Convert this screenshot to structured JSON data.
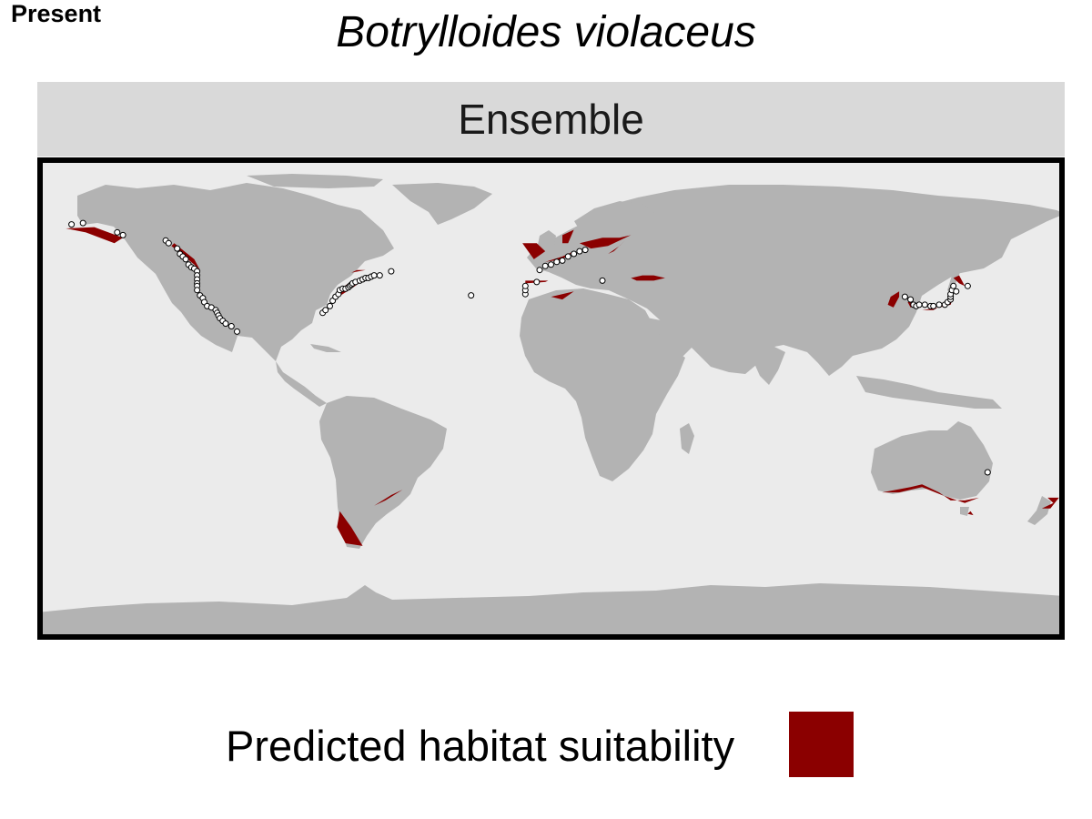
{
  "panel_tag": "Present",
  "title": "Botrylloides violaceus",
  "facet_label": "Ensemble",
  "legend": {
    "label": "Predicted habitat suitability",
    "color": "#8b0000"
  },
  "colors": {
    "ocean": "#ebebeb",
    "land": "#b3b3b3",
    "strip": "#d9d9d9",
    "frame": "#000000",
    "suitable": "#8b0000",
    "occurrence_fill": "#ffffff",
    "occurrence_stroke": "#000000"
  },
  "chart_data": {
    "type": "map",
    "projection": "equirectangular",
    "xlim": [
      -180,
      180
    ],
    "ylim": [
      -90,
      90
    ],
    "occurrences": [
      [
        -168,
        65
      ],
      [
        -164,
        65.5
      ],
      [
        -152,
        62
      ],
      [
        -150,
        61
      ],
      [
        -135,
        59
      ],
      [
        -134,
        58
      ],
      [
        -131,
        56
      ],
      [
        -130,
        54
      ],
      [
        -129,
        53
      ],
      [
        -128,
        52
      ],
      [
        -127,
        50
      ],
      [
        -126,
        49
      ],
      [
        -125,
        48.5
      ],
      [
        -124,
        47.5
      ],
      [
        -124,
        46
      ],
      [
        -124,
        44.5
      ],
      [
        -124,
        43
      ],
      [
        -124,
        42
      ],
      [
        -124,
        40.5
      ],
      [
        -123,
        38.5
      ],
      [
        -122,
        37.5
      ],
      [
        -121.5,
        36
      ],
      [
        -120.5,
        34.5
      ],
      [
        -119,
        34
      ],
      [
        -117.5,
        33
      ],
      [
        -117,
        32
      ],
      [
        -116.5,
        31
      ],
      [
        -116,
        30
      ],
      [
        -115,
        29
      ],
      [
        -114,
        28
      ],
      [
        -112,
        27
      ],
      [
        -110,
        25
      ],
      [
        -80,
        32
      ],
      [
        -79,
        33
      ],
      [
        -77.5,
        34.5
      ],
      [
        -76.5,
        36.5
      ],
      [
        -75.5,
        38
      ],
      [
        -74.5,
        39
      ],
      [
        -74,
        40.5
      ],
      [
        -73,
        41
      ],
      [
        -72,
        41
      ],
      [
        -71,
        41.5
      ],
      [
        -70.5,
        42
      ],
      [
        -70,
        42.5
      ],
      [
        -69.5,
        43
      ],
      [
        -68.5,
        43.5
      ],
      [
        -67,
        44
      ],
      [
        -66,
        44.5
      ],
      [
        -65,
        45
      ],
      [
        -64,
        45
      ],
      [
        -63,
        45.5
      ],
      [
        -62,
        46
      ],
      [
        -60,
        46
      ],
      [
        -56,
        47.5
      ],
      [
        -28,
        38.5
      ],
      [
        -9,
        39
      ],
      [
        -9,
        40.5
      ],
      [
        -9,
        42
      ],
      [
        -5,
        43.5
      ],
      [
        -4,
        48
      ],
      [
        -2,
        49.5
      ],
      [
        0,
        50
      ],
      [
        2,
        51
      ],
      [
        4,
        51.5
      ],
      [
        6,
        53
      ],
      [
        8,
        54
      ],
      [
        10,
        55
      ],
      [
        12,
        55.5
      ],
      [
        18,
        44
      ],
      [
        124,
        38
      ],
      [
        126,
        37
      ],
      [
        127,
        35
      ],
      [
        128,
        34.5
      ],
      [
        129,
        35
      ],
      [
        131,
        35
      ],
      [
        133,
        34.5
      ],
      [
        134,
        34.5
      ],
      [
        136,
        35
      ],
      [
        138,
        35
      ],
      [
        139,
        36
      ],
      [
        140,
        37
      ],
      [
        140,
        38
      ],
      [
        140,
        39
      ],
      [
        140.5,
        40.5
      ],
      [
        142,
        40
      ],
      [
        141,
        42
      ],
      [
        146,
        42
      ],
      [
        153,
        -27.5
      ]
    ],
    "suitable_regions": [
      [
        [
          -170,
          63.5
        ],
        [
          -163,
          62
        ],
        [
          -153,
          58
        ],
        [
          -150,
          60
        ],
        [
          -160,
          64
        ]
      ],
      [
        [
          -133,
          57
        ],
        [
          -125,
          50
        ],
        [
          -123,
          48
        ],
        [
          -125,
          52
        ],
        [
          -132,
          58
        ]
      ],
      [
        [
          -76,
          37
        ],
        [
          -70,
          41
        ],
        [
          -66,
          44
        ],
        [
          -71,
          43
        ],
        [
          -75,
          40
        ]
      ],
      [
        [
          -78,
          34
        ],
        [
          -74,
          38
        ],
        [
          -76,
          36
        ]
      ],
      [
        [
          -62,
          -40
        ],
        [
          -58,
          -38
        ],
        [
          -52,
          -34
        ],
        [
          -56,
          -36
        ]
      ],
      [
        [
          -74,
          -42
        ],
        [
          -70,
          -48
        ],
        [
          -66,
          -55
        ],
        [
          -72,
          -54
        ],
        [
          -75,
          -48
        ]
      ],
      [
        [
          -10,
          58
        ],
        [
          -5,
          58
        ],
        [
          -2,
          55
        ],
        [
          -6,
          52
        ],
        [
          -8,
          55
        ]
      ],
      [
        [
          -2,
          51
        ],
        [
          4,
          52
        ],
        [
          8,
          55
        ],
        [
          4,
          53
        ]
      ],
      [
        [
          4,
          61
        ],
        [
          8,
          63
        ],
        [
          6,
          58
        ],
        [
          4,
          58
        ]
      ],
      [
        [
          10,
          58
        ],
        [
          18,
          60
        ],
        [
          24,
          60
        ],
        [
          28,
          61
        ],
        [
          20,
          57
        ],
        [
          14,
          56
        ]
      ],
      [
        [
          20,
          54
        ],
        [
          24,
          57
        ],
        [
          26,
          59
        ],
        [
          22,
          55
        ]
      ],
      [
        [
          -9,
          43
        ],
        [
          -2,
          43.5
        ],
        [
          -1,
          44
        ],
        [
          -9,
          44
        ]
      ],
      [
        [
          28,
          45
        ],
        [
          32,
          46
        ],
        [
          36,
          46
        ],
        [
          40,
          45
        ],
        [
          36,
          44
        ],
        [
          30,
          44
        ]
      ],
      [
        [
          0,
          38
        ],
        [
          8,
          40
        ],
        [
          4,
          37
        ]
      ],
      [
        [
          120,
          34
        ],
        [
          122,
          38
        ],
        [
          122,
          40
        ],
        [
          119,
          38
        ],
        [
          118,
          35
        ]
      ],
      [
        [
          126,
          34
        ],
        [
          128,
          35
        ],
        [
          127,
          36
        ],
        [
          125,
          36
        ]
      ],
      [
        [
          130,
          33
        ],
        [
          136,
          34
        ],
        [
          140,
          35
        ],
        [
          141,
          38
        ],
        [
          139,
          36
        ],
        [
          134,
          33
        ]
      ],
      [
        [
          116,
          -35
        ],
        [
          126,
          -33
        ],
        [
          130,
          -32
        ],
        [
          136,
          -35
        ],
        [
          140,
          -38
        ],
        [
          145,
          -38
        ],
        [
          150,
          -37
        ],
        [
          145,
          -39
        ],
        [
          137,
          -36
        ],
        [
          130,
          -33
        ],
        [
          122,
          -35
        ]
      ],
      [
        [
          147,
          -42
        ],
        [
          148,
          -43.5
        ],
        [
          146,
          -43
        ]
      ],
      [
        [
          172,
          -41
        ],
        [
          176,
          -39
        ],
        [
          174,
          -37
        ],
        [
          178,
          -37
        ],
        [
          175,
          -41
        ]
      ],
      [
        [
          -5,
          -5
        ]
      ],
      [
        [
          -72,
          46
        ],
        [
          -68,
          48
        ],
        [
          -65,
          48
        ],
        [
          -70,
          47
        ]
      ],
      [
        [
          145,
          42
        ],
        [
          143,
          43
        ],
        [
          141,
          45
        ],
        [
          143,
          46
        ]
      ]
    ]
  }
}
